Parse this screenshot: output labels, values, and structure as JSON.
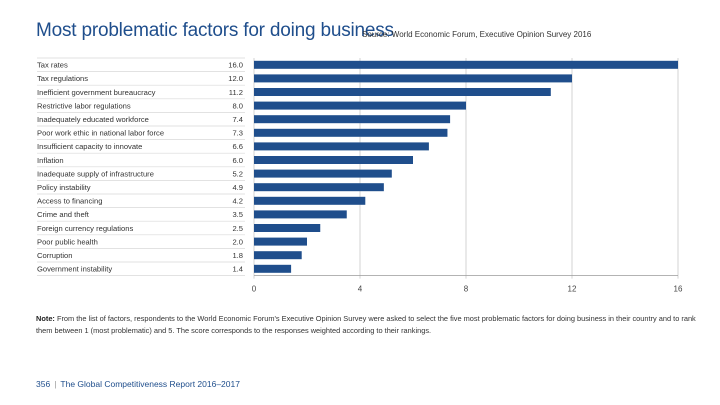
{
  "title": "Most problematic factors for doing business",
  "source": "Source: World Economic Forum, Executive Opinion Survey 2016",
  "chart_data": {
    "type": "bar",
    "orientation": "horizontal",
    "categories": [
      "Tax rates",
      "Tax regulations",
      "Inefficient government bureaucracy",
      "Restrictive labor regulations",
      "Inadequately educated workforce",
      "Poor work ethic in national labor force",
      "Insufficient capacity to innovate",
      "Inflation",
      "Inadequate supply of infrastructure",
      "Policy instability",
      "Access to financing",
      "Crime and theft",
      "Foreign currency regulations",
      "Poor public health",
      "Corruption",
      "Government instability"
    ],
    "values": [
      16.0,
      12.0,
      11.2,
      8.0,
      7.4,
      7.3,
      6.6,
      6.0,
      5.2,
      4.9,
      4.2,
      3.5,
      2.5,
      2.0,
      1.8,
      1.4
    ],
    "value_labels": [
      "16.0",
      "12.0",
      "11.2",
      "8.0",
      "7.4",
      "7.3",
      "6.6",
      "6.0",
      "5.2",
      "4.9",
      "4.2",
      "3.5",
      "2.5",
      "2.0",
      "1.8",
      "1.4"
    ],
    "xlim": [
      0,
      16
    ],
    "xticks": [
      0,
      4,
      8,
      12,
      16
    ],
    "xtick_labels": [
      "0",
      "4",
      "8",
      "12",
      "16"
    ],
    "bar_color": "#1f4e8c",
    "grid": true
  },
  "note": {
    "label": "Note:",
    "text": " From the list of factors, respondents to the World Economic Forum's Executive Opinion Survey were asked to select the five most problematic factors for doing business in their country and to rank them between 1 (most problematic) and 5. The score corresponds to the responses weighted according to their rankings."
  },
  "footer": {
    "page_number": "356",
    "separator": "|",
    "report_title": "The Global Competitiveness Report 2016–2017"
  }
}
